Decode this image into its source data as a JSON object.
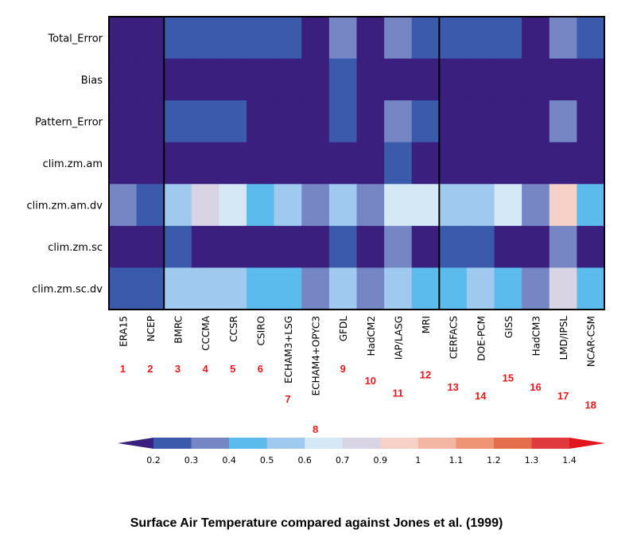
{
  "chart_data": {
    "type": "heatmap",
    "title": "Surface Air Temperature compared against Jones et al. (1999)",
    "rows": [
      "Total_Error",
      "Bias",
      "Pattern_Error",
      "clim.zm.am",
      "clim.zm.am.dv",
      "clim.zm.sc",
      "clim.zm.sc.dv"
    ],
    "columns": [
      {
        "name": "ERA15",
        "number": "1"
      },
      {
        "name": "NCEP",
        "number": "2"
      },
      {
        "name": "BMRC",
        "number": "3"
      },
      {
        "name": "CCCMA",
        "number": "4"
      },
      {
        "name": "CCSR",
        "number": "5"
      },
      {
        "name": "CSIRO",
        "number": "6"
      },
      {
        "name": "ECHAM3+LSG",
        "number": "7"
      },
      {
        "name": "ECHAM4+OPYC3",
        "number": "8"
      },
      {
        "name": "GFDL",
        "number": "9"
      },
      {
        "name": "HadCM2",
        "number": "10"
      },
      {
        "name": "IAP/LASG",
        "number": "11"
      },
      {
        "name": "MRI",
        "number": "12"
      },
      {
        "name": "CERFACS",
        "number": "13"
      },
      {
        "name": "DOE-PCM",
        "number": "14"
      },
      {
        "name": "GISS",
        "number": "15"
      },
      {
        "name": "HadCM3",
        "number": "16"
      },
      {
        "name": "LMD/IPSL",
        "number": "17"
      },
      {
        "name": "NCAR-CSM",
        "number": "18"
      }
    ],
    "values": [
      [
        0.15,
        0.15,
        0.25,
        0.25,
        0.25,
        0.25,
        0.25,
        0.15,
        0.35,
        0.15,
        0.35,
        0.25,
        0.25,
        0.25,
        0.25,
        0.15,
        0.35,
        0.25
      ],
      [
        0.15,
        0.15,
        0.15,
        0.15,
        0.15,
        0.15,
        0.15,
        0.15,
        0.25,
        0.15,
        0.15,
        0.15,
        0.15,
        0.15,
        0.15,
        0.15,
        0.15,
        0.15
      ],
      [
        0.15,
        0.15,
        0.25,
        0.25,
        0.25,
        0.15,
        0.15,
        0.15,
        0.25,
        0.15,
        0.35,
        0.25,
        0.15,
        0.15,
        0.15,
        0.15,
        0.35,
        0.15
      ],
      [
        0.15,
        0.15,
        0.15,
        0.15,
        0.15,
        0.15,
        0.15,
        0.15,
        0.15,
        0.15,
        0.25,
        0.15,
        0.15,
        0.15,
        0.15,
        0.15,
        0.15,
        0.15
      ],
      [
        0.35,
        0.25,
        0.55,
        0.8,
        0.65,
        0.45,
        0.55,
        0.35,
        0.55,
        0.35,
        0.65,
        0.65,
        0.55,
        0.55,
        0.65,
        0.35,
        0.95,
        0.45
      ],
      [
        0.15,
        0.15,
        0.25,
        0.15,
        0.15,
        0.15,
        0.15,
        0.15,
        0.25,
        0.15,
        0.35,
        0.15,
        0.25,
        0.25,
        0.15,
        0.15,
        0.35,
        0.15
      ],
      [
        0.25,
        0.25,
        0.55,
        0.55,
        0.55,
        0.45,
        0.45,
        0.35,
        0.55,
        0.35,
        0.55,
        0.45,
        0.45,
        0.55,
        0.45,
        0.35,
        0.8,
        0.45
      ]
    ],
    "group_separators_after_column": [
      2,
      12
    ],
    "colorbar": {
      "ticks": [
        "0.2",
        "0.3",
        "0.4",
        "0.5",
        "0.6",
        "0.7",
        "0.9",
        "1",
        "1.1",
        "1.2",
        "1.3",
        "1.4"
      ],
      "colors": [
        "#3a1f7f",
        "#3a5aac",
        "#7487c4",
        "#5bbcec",
        "#9fc9ee",
        "#d5e8f6",
        "#d8d4e4",
        "#f7d0c8",
        "#f3b6a2",
        "#ef9576",
        "#e46e4c",
        "#e13a3e",
        "#e0151e"
      ]
    }
  }
}
